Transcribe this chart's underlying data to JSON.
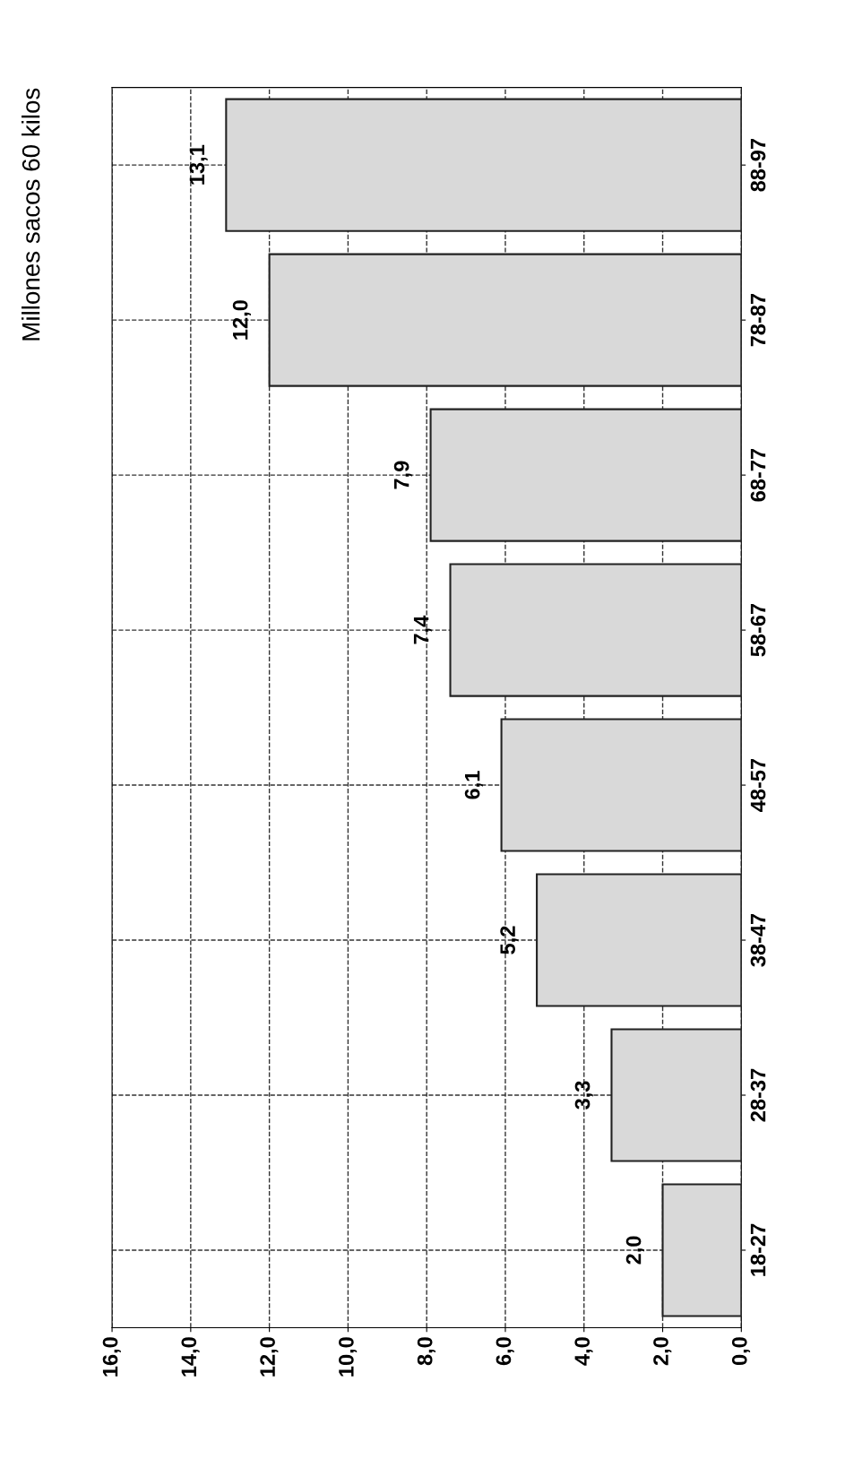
{
  "chart_data": {
    "type": "bar",
    "orientation": "horizontal",
    "title": "Millones sacos 60 kilos",
    "categories": [
      "88-97",
      "78-87",
      "68-77",
      "58-67",
      "48-57",
      "38-47",
      "28-37",
      "18-27"
    ],
    "values": [
      13.1,
      12.0,
      7.9,
      7.4,
      6.1,
      5.2,
      3.3,
      2.0
    ],
    "value_labels": [
      "13,1",
      "12,0",
      "7,9",
      "7,4",
      "6,1",
      "5,2",
      "3,3",
      "2,0"
    ],
    "color": "#d9d9d9",
    "xlim": [
      16,
      0
    ],
    "xticks": [
      {
        "value": 16,
        "label": "16,0"
      },
      {
        "value": 14,
        "label": "14,0"
      },
      {
        "value": 12,
        "label": "12,0"
      },
      {
        "value": 10,
        "label": "10,0"
      },
      {
        "value": 8,
        "label": "8,0"
      },
      {
        "value": 6,
        "label": "6,0"
      },
      {
        "value": 4,
        "label": "4,0"
      },
      {
        "value": 2,
        "label": "2,0"
      },
      {
        "value": 0,
        "label": "0,0"
      }
    ],
    "grid": true,
    "line_style": "dashed"
  }
}
